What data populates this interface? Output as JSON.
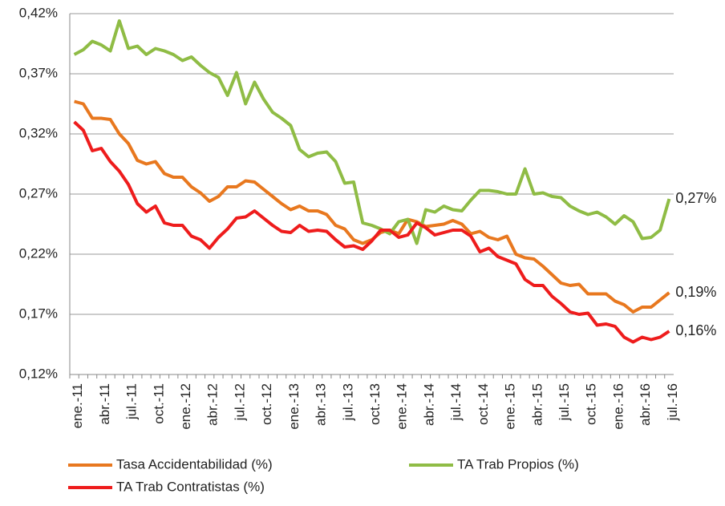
{
  "chart_data": {
    "type": "line",
    "categories": [
      "ene.-11",
      null,
      null,
      "abr.-11",
      null,
      null,
      "jul.-11",
      null,
      null,
      "oct.-11",
      null,
      null,
      "ene.-12",
      null,
      null,
      "abr.-12",
      null,
      null,
      "jul.-12",
      null,
      null,
      "oct.-12",
      null,
      null,
      "ene.-13",
      null,
      null,
      "abr.-13",
      null,
      null,
      "jul.-13",
      null,
      null,
      "oct.-13",
      null,
      null,
      "ene.-14",
      null,
      null,
      "abr.-14",
      null,
      null,
      "jul.-14",
      null,
      null,
      "oct.-14",
      null,
      null,
      "ene.-15",
      null,
      null,
      "abr.-15",
      null,
      null,
      "jul.-15",
      null,
      null,
      "oct.-15",
      null,
      null,
      "ene.-16",
      null,
      null,
      "abr.-16",
      null,
      null,
      "jul.-16"
    ],
    "series": [
      {
        "name": "Tasa Accidentabilidad (%)",
        "color": "#e8781f",
        "values": [
          0.347,
          0.345,
          0.333,
          0.333,
          0.332,
          0.32,
          0.312,
          0.298,
          0.295,
          0.297,
          0.287,
          0.284,
          0.284,
          0.276,
          0.271,
          0.264,
          0.268,
          0.276,
          0.276,
          0.281,
          0.28,
          0.274,
          0.268,
          0.262,
          0.257,
          0.26,
          0.256,
          0.256,
          0.253,
          0.244,
          0.241,
          0.232,
          0.229,
          0.232,
          0.238,
          0.24,
          0.237,
          0.249,
          0.247,
          0.243,
          0.244,
          0.245,
          0.248,
          0.245,
          0.237,
          0.239,
          0.234,
          0.232,
          0.235,
          0.22,
          0.217,
          0.216,
          0.21,
          0.203,
          0.196,
          0.194,
          0.195,
          0.187,
          0.187,
          0.187,
          0.181,
          0.178,
          0.172,
          0.176,
          0.176,
          0.182,
          0.188
        ],
        "value_labels": [
          null,
          null,
          null,
          null,
          null,
          null,
          null,
          null,
          null,
          null,
          null,
          null,
          null,
          null,
          null,
          null,
          null,
          null,
          null,
          null,
          null,
          null,
          null,
          null,
          null,
          null,
          null,
          null,
          null,
          null,
          null,
          null,
          null,
          null,
          null,
          null,
          null,
          null,
          null,
          null,
          null,
          null,
          null,
          null,
          null,
          null,
          null,
          null,
          null,
          null,
          null,
          null,
          null,
          null,
          null,
          null,
          null,
          null,
          null,
          null,
          null,
          null,
          null,
          null,
          null,
          null,
          "0,19%"
        ]
      },
      {
        "name": "TA Trab Propios (%)",
        "color": "#8fbc45",
        "values": [
          0.386,
          0.39,
          0.397,
          0.394,
          0.389,
          0.414,
          0.391,
          0.393,
          0.386,
          0.391,
          0.389,
          0.386,
          0.381,
          0.384,
          0.377,
          0.371,
          0.367,
          0.352,
          0.371,
          0.345,
          0.363,
          0.349,
          0.338,
          0.333,
          0.327,
          0.307,
          0.301,
          0.304,
          0.305,
          0.297,
          0.279,
          0.28,
          0.246,
          0.244,
          0.241,
          0.237,
          0.247,
          0.249,
          0.229,
          0.257,
          0.255,
          0.26,
          0.257,
          0.256,
          0.265,
          0.273,
          0.273,
          0.272,
          0.27,
          0.27,
          0.291,
          0.27,
          0.271,
          0.268,
          0.267,
          0.26,
          0.256,
          0.253,
          0.255,
          0.251,
          0.245,
          0.252,
          0.247,
          0.233,
          0.234,
          0.24,
          0.266
        ],
        "value_labels": [
          null,
          null,
          null,
          null,
          null,
          null,
          null,
          null,
          null,
          null,
          null,
          null,
          null,
          null,
          null,
          null,
          null,
          null,
          null,
          null,
          null,
          null,
          null,
          null,
          null,
          null,
          null,
          null,
          null,
          null,
          null,
          null,
          null,
          null,
          null,
          null,
          null,
          null,
          null,
          null,
          null,
          null,
          null,
          null,
          null,
          null,
          null,
          null,
          null,
          null,
          null,
          null,
          null,
          null,
          null,
          null,
          null,
          null,
          null,
          null,
          null,
          null,
          null,
          null,
          null,
          null,
          "0,27%"
        ]
      },
      {
        "name": "TA Trab Contratistas (%)",
        "color": "#ee1c1c",
        "values": [
          0.33,
          0.323,
          0.306,
          0.308,
          0.297,
          0.289,
          0.278,
          0.262,
          0.255,
          0.26,
          0.246,
          0.244,
          0.244,
          0.235,
          0.232,
          0.225,
          0.234,
          0.241,
          0.25,
          0.251,
          0.256,
          0.25,
          0.244,
          0.239,
          0.238,
          0.244,
          0.239,
          0.24,
          0.239,
          0.232,
          0.226,
          0.227,
          0.224,
          0.231,
          0.24,
          0.24,
          0.234,
          0.236,
          0.246,
          0.242,
          0.236,
          0.238,
          0.24,
          0.24,
          0.235,
          0.222,
          0.225,
          0.218,
          0.215,
          0.212,
          0.199,
          0.194,
          0.194,
          0.185,
          0.179,
          0.172,
          0.17,
          0.171,
          0.161,
          0.162,
          0.16,
          0.151,
          0.147,
          0.151,
          0.149,
          0.151,
          0.156
        ],
        "value_labels": [
          null,
          null,
          null,
          null,
          null,
          null,
          null,
          null,
          null,
          null,
          null,
          null,
          null,
          null,
          null,
          null,
          null,
          null,
          null,
          null,
          null,
          null,
          null,
          null,
          null,
          null,
          null,
          null,
          null,
          null,
          null,
          null,
          null,
          null,
          null,
          null,
          null,
          null,
          null,
          null,
          null,
          null,
          null,
          null,
          null,
          null,
          null,
          null,
          null,
          null,
          null,
          null,
          null,
          null,
          null,
          null,
          null,
          null,
          null,
          null,
          null,
          null,
          null,
          null,
          null,
          null,
          "0,16%"
        ]
      }
    ],
    "ylim": [
      0.12,
      0.42
    ],
    "yticks": [
      {
        "value": 0.12,
        "label": "0,12%"
      },
      {
        "value": 0.17,
        "label": "0,17%"
      },
      {
        "value": 0.22,
        "label": "0,22%"
      },
      {
        "value": 0.27,
        "label": "0,27%"
      },
      {
        "value": 0.32,
        "label": "0,32%"
      },
      {
        "value": 0.37,
        "label": "0,37%"
      },
      {
        "value": 0.42,
        "label": "0,42%"
      }
    ],
    "grid": true
  }
}
